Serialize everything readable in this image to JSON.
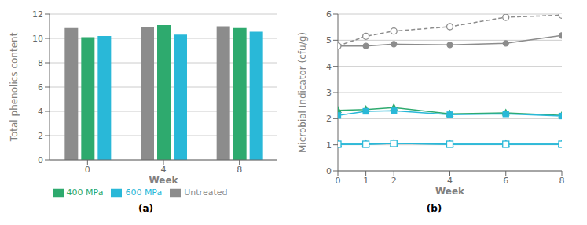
{
  "chart_data": [
    {
      "type": "bar",
      "categories": [
        "0",
        "4",
        "8"
      ],
      "series": [
        {
          "name": "Untreated",
          "color": "#8c8c8c",
          "values": [
            10.85,
            10.95,
            11.0
          ]
        },
        {
          "name": "400 MPa",
          "color": "#2eaa6e",
          "values": [
            10.1,
            11.1,
            10.85
          ]
        },
        {
          "name": "600 MPa",
          "color": "#29b8d8",
          "values": [
            10.2,
            10.3,
            10.55
          ]
        }
      ],
      "xlabel": "Week",
      "ylabel": "Total phenolics content",
      "ylim": [
        0,
        12
      ],
      "yticks": [
        0,
        2,
        4,
        6,
        8,
        10,
        12
      ],
      "grid": true,
      "legend": "bottom",
      "annotations": [
        "(a)"
      ]
    },
    {
      "type": "line",
      "x": [
        0,
        1,
        2,
        4,
        6,
        8
      ],
      "xlim": [
        0,
        8
      ],
      "xticks": [
        0,
        1,
        2,
        4,
        6,
        8
      ],
      "series": [
        {
          "color": "#8c8c8c",
          "marker": "circle",
          "line_style": "solid",
          "values": [
            4.78,
            4.78,
            4.85,
            4.82,
            4.88,
            5.18
          ]
        },
        {
          "color": "#2eaa6e",
          "marker": "triangle",
          "line_style": "solid",
          "values": [
            2.32,
            2.35,
            2.42,
            2.18,
            2.22,
            2.12
          ]
        },
        {
          "color": "#29b8d8",
          "marker": "square",
          "line_style": "solid",
          "values": [
            2.12,
            2.28,
            2.3,
            2.15,
            2.18,
            2.1
          ]
        },
        {
          "color": "#8c8c8c",
          "marker": "open_circle",
          "line_style": "dashed",
          "values": [
            4.78,
            5.15,
            5.35,
            5.52,
            5.88,
            5.96
          ]
        },
        {
          "color": "#29b8d8",
          "marker": "open_triangle",
          "line_style": "solid",
          "values": [
            1.02,
            1.02,
            1.05,
            1.02,
            1.02,
            1.02
          ]
        },
        {
          "color": "#29b8d8",
          "marker": "open_square",
          "line_style": "solid",
          "values": [
            1.02,
            1.02,
            1.05,
            1.02,
            1.02,
            1.02
          ]
        }
      ],
      "xlabel": "Week",
      "ylabel": "Microbial Indicator (cfu/g)",
      "ylim": [
        0,
        6
      ],
      "yticks": [
        0,
        1,
        2,
        3,
        4,
        5,
        6
      ],
      "grid": true,
      "annotations": [
        "(b)"
      ]
    }
  ]
}
